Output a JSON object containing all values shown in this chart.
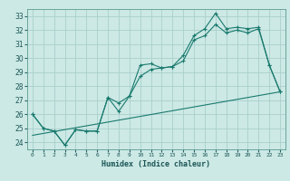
{
  "xlabel": "Humidex (Indice chaleur)",
  "background_color": "#cce9e5",
  "grid_color": "#aacfcc",
  "line_color": "#1a7a6e",
  "xlim": [
    -0.5,
    23.5
  ],
  "ylim": [
    23.5,
    33.5
  ],
  "yticks": [
    24,
    25,
    26,
    27,
    28,
    29,
    30,
    31,
    32,
    33
  ],
  "xticks": [
    0,
    1,
    2,
    3,
    4,
    5,
    6,
    7,
    8,
    9,
    10,
    11,
    12,
    13,
    14,
    15,
    16,
    17,
    18,
    19,
    20,
    21,
    22,
    23
  ],
  "series1": {
    "x": [
      0,
      1,
      2,
      3,
      4,
      5,
      6,
      7,
      8,
      9,
      10,
      11,
      12,
      13,
      14,
      15,
      16,
      17,
      18,
      19,
      20,
      21,
      22,
      23
    ],
    "y": [
      26.0,
      25.0,
      24.8,
      23.8,
      24.9,
      24.8,
      24.8,
      27.2,
      26.8,
      27.3,
      29.5,
      29.6,
      29.3,
      29.4,
      30.2,
      31.6,
      32.1,
      33.2,
      32.1,
      32.2,
      32.1,
      32.2,
      29.5,
      27.6
    ]
  },
  "series2": {
    "x": [
      0,
      1,
      2,
      3,
      4,
      5,
      6,
      7,
      8,
      9,
      10,
      11,
      12,
      13,
      14,
      15,
      16,
      17,
      18,
      19,
      20,
      21,
      22,
      23
    ],
    "y": [
      26.0,
      25.0,
      24.8,
      23.8,
      24.9,
      24.8,
      24.8,
      27.2,
      26.2,
      27.3,
      28.7,
      29.2,
      29.3,
      29.4,
      29.8,
      31.3,
      31.6,
      32.4,
      31.8,
      32.0,
      31.8,
      32.1,
      29.5,
      27.6
    ]
  },
  "series3": {
    "x": [
      0,
      23
    ],
    "y": [
      24.5,
      27.6
    ]
  }
}
